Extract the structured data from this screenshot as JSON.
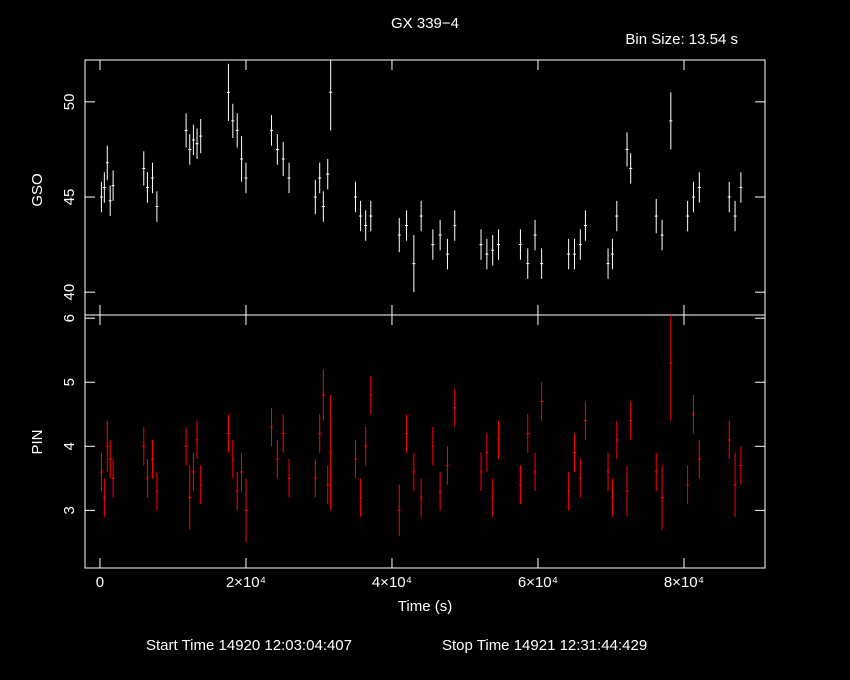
{
  "chart_data": [
    {
      "type": "errorbar",
      "title": "GX 339−4",
      "subtitle": "Bin Size: 13.54 s",
      "ylabel": "GSO",
      "xlim": [
        -2050,
        91100
      ],
      "ylim": [
        38.8,
        52.2
      ],
      "yticks": [
        40,
        45,
        50
      ],
      "xticks": [
        0,
        20000,
        40000,
        60000,
        80000
      ],
      "series": [
        {
          "name": "GSO",
          "color": "#ffffff",
          "x": [
            200,
            600,
            1000,
            1400,
            1800,
            6000,
            6500,
            7200,
            7800,
            11800,
            12300,
            12800,
            13300,
            13800,
            17600,
            18200,
            18800,
            19400,
            20000,
            23500,
            24300,
            25100,
            25900,
            29500,
            30100,
            30600,
            31200,
            31600,
            35000,
            35700,
            36400,
            37100,
            41000,
            42000,
            43000,
            44000,
            45600,
            46600,
            47600,
            48600,
            52200,
            53000,
            53800,
            54600,
            57600,
            58600,
            59600,
            60500,
            64200,
            65000,
            65800,
            66500,
            69600,
            70200,
            70800,
            72200,
            72700,
            76200,
            77000,
            78200,
            80500,
            81300,
            82100,
            86200,
            87000,
            87800
          ],
          "values": [
            45,
            45.5,
            46.8,
            44.8,
            45.6,
            46.5,
            45.5,
            46,
            44.5,
            48.5,
            47.5,
            48,
            47.8,
            48.2,
            50.5,
            49,
            48.5,
            47,
            46,
            48.5,
            47.5,
            47,
            46,
            45,
            46,
            44.5,
            46.2,
            50.5,
            45,
            44,
            43.5,
            44,
            43,
            43.5,
            41.5,
            44,
            42.5,
            43,
            42,
            43.5,
            42.5,
            42,
            42.2,
            42.5,
            42.5,
            41.5,
            43,
            41.5,
            42,
            42,
            42.5,
            43.5,
            41.5,
            42,
            44,
            47.5,
            46.5,
            44,
            43,
            49,
            44,
            45,
            45.5,
            45,
            44,
            45.5
          ],
          "errors": [
            0.8,
            0.8,
            0.9,
            0.8,
            0.8,
            0.9,
            0.8,
            0.8,
            0.8,
            0.9,
            0.8,
            0.8,
            0.8,
            0.9,
            1.5,
            0.9,
            0.9,
            1.2,
            0.8,
            0.8,
            0.8,
            0.9,
            0.8,
            0.9,
            0.8,
            0.8,
            0.8,
            2,
            0.8,
            0.8,
            0.8,
            0.8,
            0.9,
            0.8,
            1.5,
            0.8,
            0.8,
            0.8,
            0.8,
            0.8,
            0.8,
            0.8,
            0.8,
            0.8,
            0.8,
            0.8,
            0.8,
            0.8,
            0.8,
            0.8,
            0.8,
            0.8,
            0.8,
            0.8,
            0.8,
            0.9,
            0.8,
            0.9,
            0.8,
            1.5,
            0.8,
            0.8,
            0.8,
            0.8,
            0.8,
            0.8
          ]
        }
      ]
    },
    {
      "type": "errorbar",
      "ylabel": "PIN",
      "xlabel": "Time (s)",
      "start_time": "Start Time 14920 12:03:04:407",
      "stop_time": "Stop Time 14921 12:31:44:429",
      "xlim": [
        -2050,
        91100
      ],
      "ylim": [
        2.1,
        6.05
      ],
      "yticks": [
        3,
        4,
        5,
        6
      ],
      "xticks": [
        0,
        {
          "value": 20000,
          "label": "2×10⁴"
        },
        {
          "value": 40000,
          "label": "4×10⁴"
        },
        {
          "value": 60000,
          "label": "6×10⁴"
        },
        {
          "value": 80000,
          "label": "8×10⁴"
        }
      ],
      "series": [
        {
          "name": "PIN",
          "color": "#ff0000",
          "x": [
            200,
            600,
            1000,
            1400,
            1800,
            6000,
            6500,
            7200,
            7800,
            11800,
            12300,
            12800,
            13300,
            13800,
            17600,
            18200,
            18800,
            19400,
            20000,
            23500,
            24300,
            25100,
            25900,
            29500,
            30100,
            30600,
            31200,
            31600,
            35000,
            35700,
            36400,
            37100,
            41000,
            42000,
            43000,
            44000,
            45600,
            46600,
            47600,
            48600,
            52200,
            53000,
            53800,
            54600,
            57600,
            58600,
            59600,
            60500,
            64200,
            65000,
            65800,
            66500,
            69600,
            70200,
            70800,
            72200,
            72700,
            76200,
            77000,
            78200,
            80500,
            81300,
            82100,
            86200,
            87000,
            87800
          ],
          "values": [
            3.6,
            3.2,
            4,
            3.8,
            3.5,
            4,
            3.5,
            3.8,
            3.3,
            4,
            3.2,
            3.6,
            4.1,
            3.4,
            4.2,
            3.8,
            3.3,
            3.6,
            3,
            4.3,
            3.8,
            4.2,
            3.5,
            3.5,
            4.2,
            4.8,
            3.4,
            3.9,
            3.8,
            3.2,
            4,
            4.8,
            3,
            4.2,
            3.6,
            3.2,
            4,
            3.3,
            3.7,
            4.6,
            3.6,
            3.9,
            3.2,
            4.1,
            3.4,
            4.2,
            3.6,
            4.7,
            3.3,
            3.9,
            3.5,
            4.4,
            3.6,
            3.2,
            4.1,
            3.3,
            4.4,
            3.6,
            3.2,
            5.3,
            3.4,
            4.5,
            3.8,
            4.1,
            3.4,
            3.7
          ],
          "errors": [
            0.3,
            0.3,
            0.4,
            0.3,
            0.3,
            0.3,
            0.3,
            0.3,
            0.3,
            0.3,
            0.5,
            0.3,
            0.3,
            0.3,
            0.3,
            0.3,
            0.3,
            0.3,
            0.5,
            0.3,
            0.3,
            0.3,
            0.3,
            0.3,
            0.3,
            0.4,
            0.3,
            0.9,
            0.3,
            0.3,
            0.3,
            0.3,
            0.4,
            0.3,
            0.3,
            0.3,
            0.3,
            0.3,
            0.3,
            0.3,
            0.3,
            0.3,
            0.3,
            0.3,
            0.3,
            0.3,
            0.3,
            0.3,
            0.3,
            0.3,
            0.3,
            0.3,
            0.3,
            0.3,
            0.3,
            0.4,
            0.3,
            0.3,
            0.5,
            0.9,
            0.3,
            0.3,
            0.3,
            0.3,
            0.5,
            0.3
          ]
        }
      ]
    }
  ]
}
